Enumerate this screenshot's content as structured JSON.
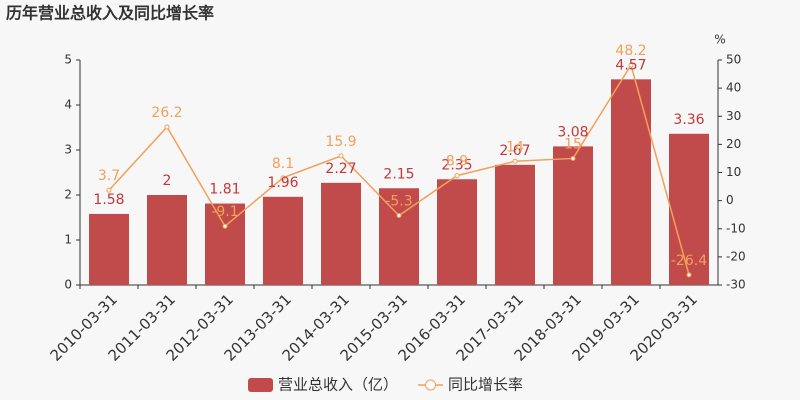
{
  "chart_data": {
    "type": "bar",
    "title": "历年营业总收入及同比增长率",
    "categories": [
      "2010-03-31",
      "2011-03-31",
      "2012-03-31",
      "2013-03-31",
      "2014-03-31",
      "2015-03-31",
      "2016-03-31",
      "2017-03-31",
      "2018-03-31",
      "2019-03-31",
      "2020-03-31"
    ],
    "series": [
      {
        "name": "营业总收入（亿）",
        "type": "bar",
        "color": "#c14b4b",
        "label_color": "#c0393b",
        "values": [
          1.58,
          2,
          1.81,
          1.96,
          2.27,
          2.15,
          2.35,
          2.67,
          3.08,
          4.57,
          3.36
        ]
      },
      {
        "name": "同比增长率",
        "type": "line",
        "axis": "y2",
        "color": "#f2a05a",
        "label_color": "#f2a05a",
        "values": [
          3.7,
          26.2,
          -9.1,
          8.1,
          15.9,
          -5.3,
          8.9,
          14,
          15,
          48.2,
          -26.4
        ]
      }
    ],
    "ylim": [
      0,
      5
    ],
    "yticks": [
      0,
      1,
      2,
      3,
      4,
      5
    ],
    "y2lim": [
      -30,
      50
    ],
    "y2ticks": [
      -30,
      -20,
      -10,
      0,
      10,
      20,
      30,
      40,
      50
    ],
    "y2_label": "%",
    "grid": false
  }
}
